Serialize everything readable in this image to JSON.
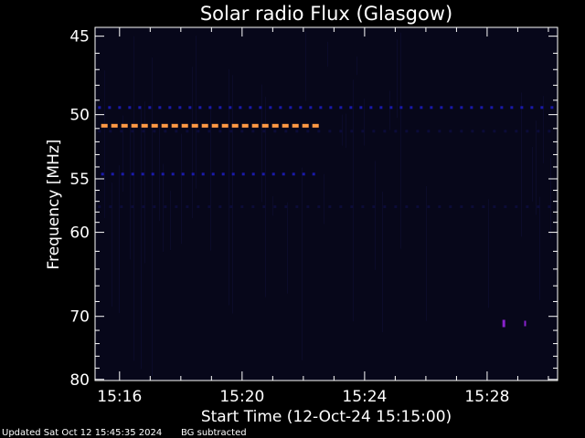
{
  "chart_data": {
    "type": "heatmap",
    "title": "Solar radio Flux (Glasgow)",
    "xlabel": "Start Time (12-Oct-24 15:15:00)",
    "ylabel": "Frequency [MHz]",
    "x_ticks": [
      {
        "label": "15:16",
        "minutes": 16
      },
      {
        "label": "15:20",
        "minutes": 20
      },
      {
        "label": "15:24",
        "minutes": 24
      },
      {
        "label": "15:28",
        "minutes": 28
      }
    ],
    "y_ticks": [
      {
        "label": "45",
        "value": 45
      },
      {
        "label": "50",
        "value": 50
      },
      {
        "label": "55",
        "value": 55
      },
      {
        "label": "60",
        "value": 60
      },
      {
        "label": "70",
        "value": 70
      },
      {
        "label": "80",
        "value": 80
      }
    ],
    "y_minor_ticks": [
      46,
      47,
      48,
      49,
      51,
      52,
      53,
      54,
      56,
      57,
      58,
      59,
      62,
      64,
      66,
      68,
      72,
      74,
      76,
      78
    ],
    "xlim_minutes": [
      15.2,
      30.3
    ],
    "ylim_mhz": [
      44.5,
      80.2
    ],
    "y_scale": "reciprocal",
    "colors": {
      "background": "#000000",
      "plot_bg": "#07071a",
      "axes": "#ffffff",
      "intense": "#ff9944",
      "strong": "#1a1aaa",
      "medium": "#10106a",
      "weak": "#0c0c38",
      "burst": "#8822cc"
    },
    "bands": [
      {
        "freq": 49.5,
        "start": 15.3,
        "end": 30.2,
        "intensity": "strong"
      },
      {
        "freq": 50.8,
        "start": 15.4,
        "end": 22.6,
        "intensity": "intense"
      },
      {
        "freq": 54.6,
        "start": 15.4,
        "end": 22.6,
        "intensity": "strong"
      },
      {
        "freq": 51.2,
        "start": 15.3,
        "end": 30.2,
        "intensity": "weak"
      },
      {
        "freq": 57.5,
        "start": 15.3,
        "end": 30.2,
        "intensity": "weak"
      },
      {
        "freq": 71.0,
        "start": 28.5,
        "end": 29.3,
        "intensity": "burst"
      }
    ],
    "footer_left": "Updated Sat Oct 12 15:45:35 2024",
    "footer_right": "BG subtracted"
  }
}
